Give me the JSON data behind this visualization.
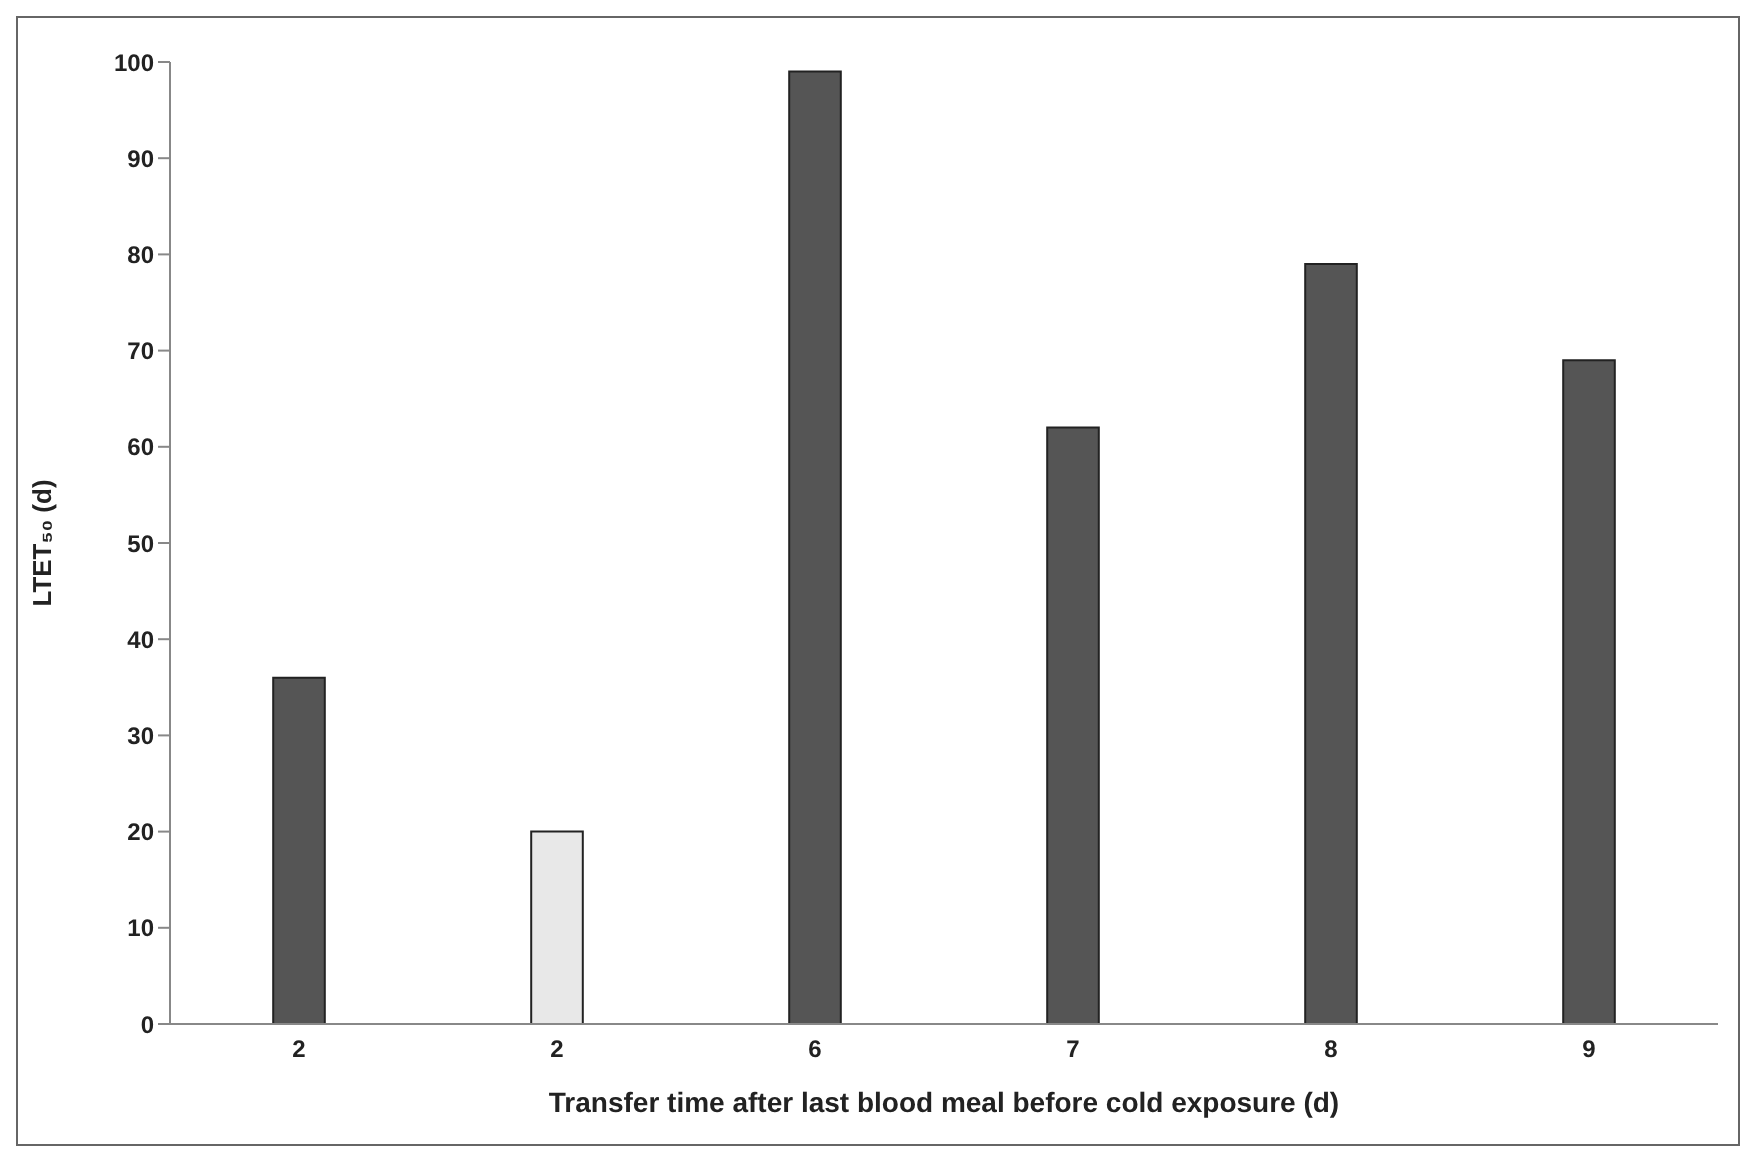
{
  "chart_data": {
    "type": "bar",
    "xlabel": "Transfer time after last blood meal before cold exposure (d)",
    "ylabel": "LTET₅₀ (d)",
    "categories": [
      "2",
      "2",
      "6",
      "7",
      "8",
      "9"
    ],
    "values": [
      36,
      20,
      99,
      62,
      79,
      69
    ],
    "colors": [
      "#555555",
      "#e8e8e8",
      "#555555",
      "#555555",
      "#555555",
      "#555555"
    ],
    "ylim": [
      0,
      100
    ],
    "yticks": [
      0,
      10,
      20,
      30,
      40,
      50,
      60,
      70,
      80,
      90,
      100
    ],
    "grid": false,
    "legend": false
  }
}
